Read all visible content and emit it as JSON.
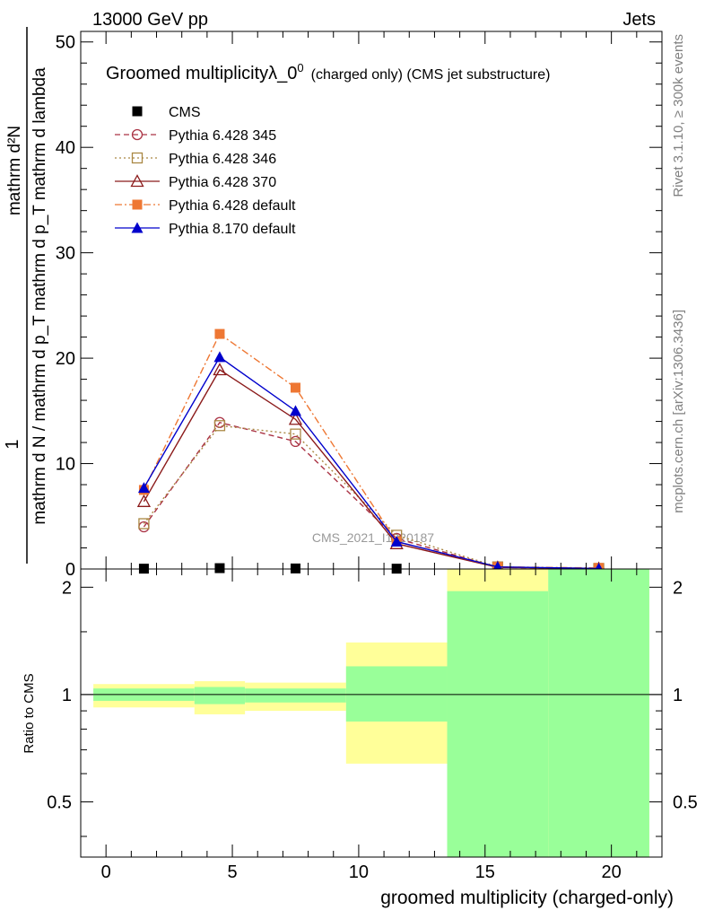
{
  "header": {
    "left": "13000 GeV pp",
    "right": "Jets"
  },
  "side": {
    "rivet": "Rivet 3.1.10, ≥ 300k events",
    "mcplots": "mcplots.cern.ch [arXiv:1306.3436]"
  },
  "watermark": "CMS_2021_I1920187",
  "chart_data": [
    {
      "type": "line",
      "title_main": "Groomed multiplicityλ_0",
      "title_sup": "0",
      "title_small": "(charged only) (CMS jet substructure)",
      "xlabel": "groomed multiplicity (charged-only)",
      "ylabel_num": "1",
      "ylabel_den": "mathrm d N / mathrm d p_T mathrm d p_T mathrm d lambda",
      "ylabel_right": "mathrm d²N",
      "xlim": [
        -1,
        22
      ],
      "ylim": [
        0,
        51
      ],
      "yticks": [
        0,
        10,
        20,
        30,
        40,
        50
      ],
      "series": [
        {
          "name": "CMS",
          "color": "#000000",
          "style": "solid",
          "marker": "square-filled",
          "x": [
            1.5,
            4.5,
            7.5,
            11.5,
            15.5,
            19.5
          ],
          "y": [
            0.03,
            0.08,
            0.05,
            0.03,
            0.0,
            0.0
          ]
        },
        {
          "name": "Pythia 6.428 345",
          "color": "#aa3344",
          "style": "dashed",
          "marker": "circle-open",
          "x": [
            1.5,
            4.5,
            7.5,
            11.5,
            15.5,
            19.5
          ],
          "y": [
            4.0,
            13.9,
            12.1,
            2.9,
            0.15,
            0.05
          ]
        },
        {
          "name": "Pythia 6.428 346",
          "color": "#aa8844",
          "style": "dotted",
          "marker": "square-open",
          "x": [
            1.5,
            4.5,
            7.5,
            11.5,
            15.5,
            19.5
          ],
          "y": [
            4.3,
            13.6,
            12.8,
            3.2,
            0.2,
            0.05
          ]
        },
        {
          "name": "Pythia 6.428 370",
          "color": "#8b1a1a",
          "style": "solid",
          "marker": "triangle-open",
          "x": [
            1.5,
            4.5,
            7.5,
            11.5,
            15.5,
            19.5
          ],
          "y": [
            6.4,
            18.9,
            14.2,
            2.4,
            0.15,
            0.05
          ]
        },
        {
          "name": "Pythia 6.428 default",
          "color": "#ee7733",
          "style": "dashdot",
          "marker": "square-filled",
          "x": [
            1.5,
            4.5,
            7.5,
            11.5,
            15.5,
            19.5
          ],
          "y": [
            7.5,
            22.3,
            17.2,
            2.6,
            0.2,
            0.1
          ]
        },
        {
          "name": "Pythia 8.170 default",
          "color": "#0000cc",
          "style": "solid",
          "marker": "triangle-filled",
          "x": [
            1.5,
            4.5,
            7.5,
            11.5,
            15.5,
            19.5
          ],
          "y": [
            7.7,
            20.1,
            15.0,
            2.6,
            0.2,
            0.05
          ]
        }
      ]
    },
    {
      "type": "area",
      "ylabel": "Ratio to CMS",
      "xlim": [
        -1,
        22
      ],
      "ylim": [
        0.35,
        2.25
      ],
      "yticks": [
        0.5,
        1,
        2
      ],
      "ytick_labels": [
        "0.5",
        "1",
        "2"
      ],
      "xticks": [
        0,
        5,
        10,
        15,
        20
      ],
      "xtick_labels": [
        "0",
        "5",
        "10",
        "15",
        "20"
      ],
      "bands": [
        {
          "x0": -0.5,
          "x1": 3.5,
          "yellow": [
            0.92,
            1.07
          ],
          "green": [
            0.96,
            1.04
          ]
        },
        {
          "x0": 3.5,
          "x1": 5.5,
          "yellow": [
            0.88,
            1.09
          ],
          "green": [
            0.94,
            1.05
          ]
        },
        {
          "x0": 5.5,
          "x1": 9.5,
          "yellow": [
            0.9,
            1.08
          ],
          "green": [
            0.95,
            1.04
          ]
        },
        {
          "x0": 9.5,
          "x1": 13.5,
          "yellow": [
            0.64,
            1.4
          ],
          "green": [
            0.84,
            1.2
          ]
        },
        {
          "x0": 13.5,
          "x1": 17.5,
          "yellow": [
            0.35,
            2.25
          ],
          "green": [
            0.35,
            1.95
          ]
        },
        {
          "x0": 17.5,
          "x1": 21.5,
          "yellow": [
            0.35,
            2.25
          ],
          "green": [
            0.35,
            2.25
          ]
        }
      ],
      "colors": {
        "yellow": "#ffff99",
        "green": "#99ff99"
      }
    }
  ]
}
